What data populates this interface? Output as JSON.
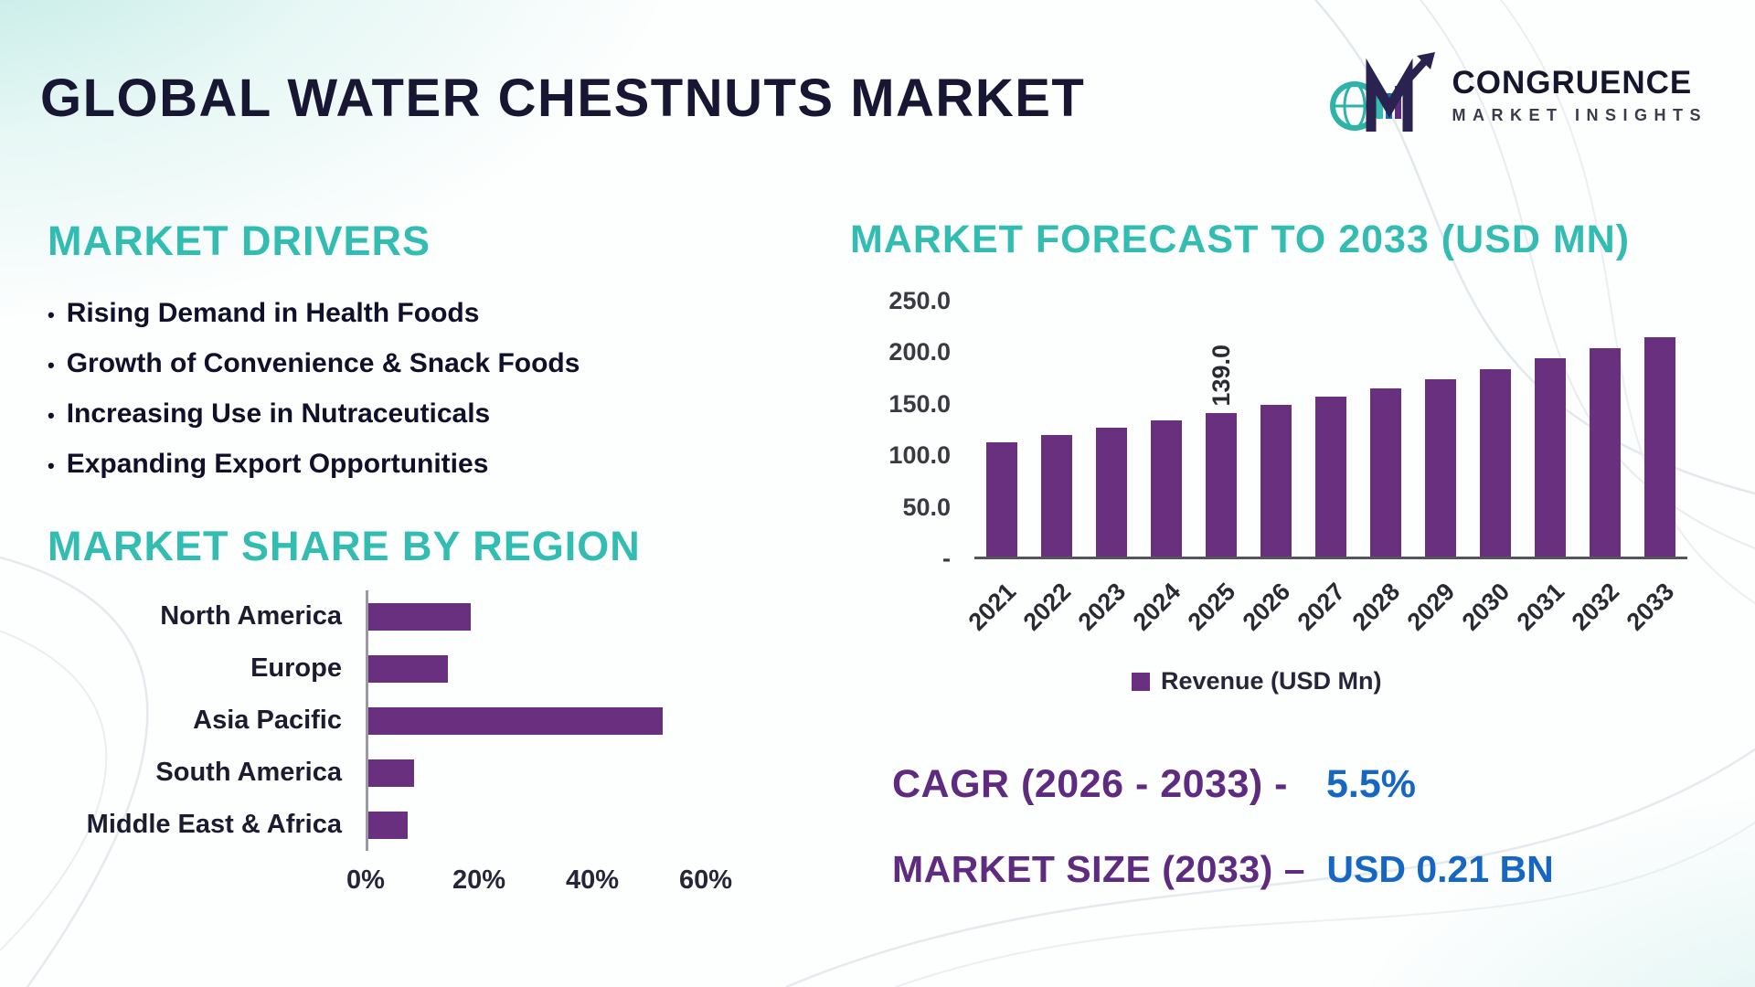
{
  "page": {
    "title": "GLOBAL WATER CHESTNUTS MARKET"
  },
  "logo": {
    "name": "CONGRUENCE",
    "tagline": "MARKET INSIGHTS"
  },
  "colors": {
    "accent_teal": "#33bdb2",
    "bar_purple": "#68307f",
    "stat_purple": "#5e2b80",
    "stat_blue": "#1667c4",
    "title_dark": "#171734"
  },
  "drivers": {
    "heading": "MARKET DRIVERS",
    "items": [
      "Rising Demand in Health Foods",
      "Growth of Convenience & Snack Foods",
      "Increasing Use in Nutraceuticals",
      "Expanding Export Opportunities"
    ]
  },
  "chart_data": [
    {
      "type": "bar",
      "orientation": "horizontal",
      "title": "MARKET SHARE BY REGION",
      "categories": [
        "North America",
        "Europe",
        "Asia Pacific",
        "South America",
        "Middle East & Africa"
      ],
      "values": [
        18,
        14,
        52,
        8,
        7
      ],
      "unit": "%",
      "xlim": [
        0,
        60
      ],
      "x_ticks": [
        {
          "label": "0%",
          "v": 0
        },
        {
          "label": "20%",
          "v": 20
        },
        {
          "label": "40%",
          "v": 40
        },
        {
          "label": "60%",
          "v": 60
        }
      ],
      "bar_color": "#68307f",
      "grid": false
    },
    {
      "type": "bar",
      "orientation": "vertical",
      "title": "MARKET FORECAST TO 2033 (USD MN)",
      "categories": [
        "2021",
        "2022",
        "2023",
        "2024",
        "2025",
        "2026",
        "2027",
        "2028",
        "2029",
        "2030",
        "2031",
        "2032",
        "2033"
      ],
      "values": [
        111,
        118,
        125,
        132,
        139,
        147,
        155,
        163,
        172,
        182,
        192,
        202,
        213
      ],
      "value_labels": [
        {
          "category": "2025",
          "text": "139.0"
        }
      ],
      "ylim": [
        0,
        250
      ],
      "y_ticks": [
        {
          "label": "250.0",
          "v": 250
        },
        {
          "label": "200.0",
          "v": 200
        },
        {
          "label": "150.0",
          "v": 150
        },
        {
          "label": "100.0",
          "v": 100
        },
        {
          "label": "50.0",
          "v": 50
        },
        {
          "label": "-",
          "v": 0
        }
      ],
      "legend": "Revenue (USD Mn)",
      "legend_position": "bottom",
      "bar_color": "#68307f",
      "grid": false
    }
  ],
  "stats": {
    "cagr_label": "CAGR (2026 - 2033) -",
    "cagr_value": "5.5%",
    "size_label": "MARKET SIZE (2033) –",
    "size_value": "USD 0.21 BN"
  }
}
